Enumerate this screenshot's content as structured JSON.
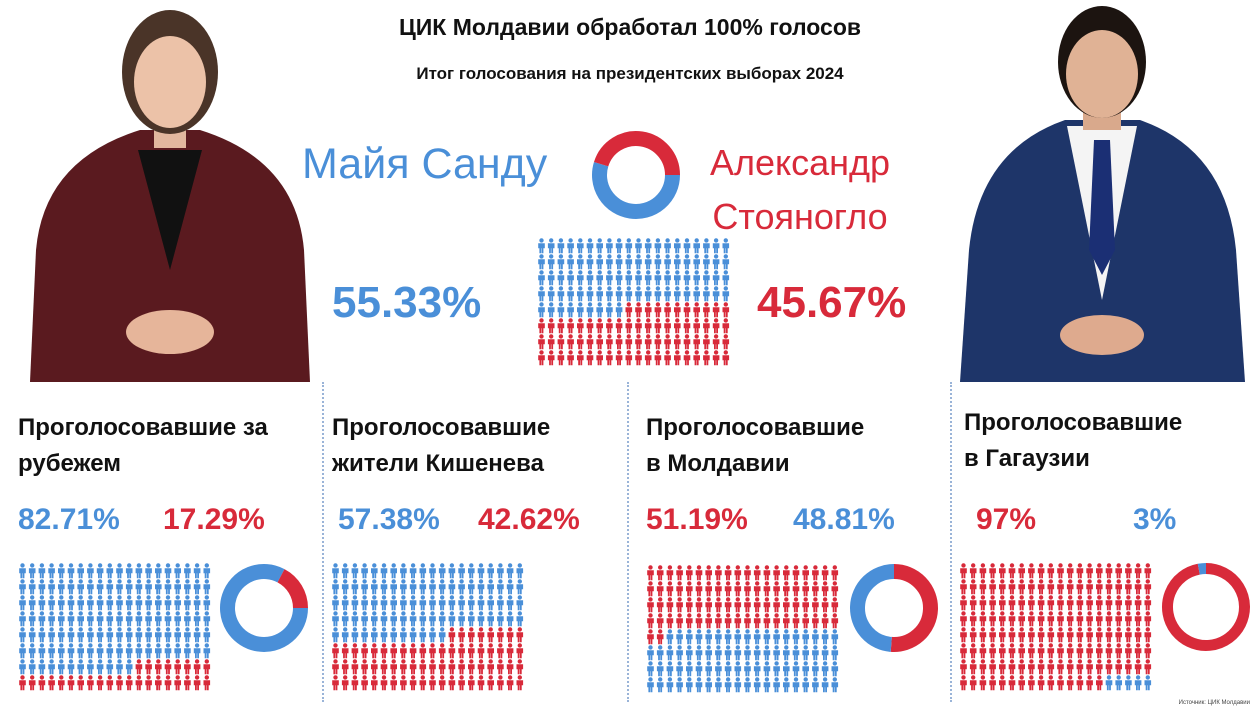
{
  "header": {
    "title": "ЦИК Молдавии обработал 100% голосов",
    "subtitle": "Итог голосования на президентских выборах 2024"
  },
  "colors": {
    "sandu": "#4a8fd8",
    "stoianoglo": "#d82a3a"
  },
  "candidates": {
    "left_name": "Майя Санду",
    "right_name_line1": "Александр",
    "right_name_line2": "Стояногло",
    "left_pct": "55.33%",
    "right_pct": "45.67%"
  },
  "sections": [
    {
      "title_line1": "Проголосовавшие за",
      "title_line2": "рубежем",
      "pct_a": "82.71%",
      "pct_b": "17.29%"
    },
    {
      "title_line1": "Проголосовавшие",
      "title_line2": "жители Кишенева",
      "pct_a": "57.38%",
      "pct_b": "42.62%"
    },
    {
      "title_line1": "Проголосовавшие",
      "title_line2": "в Молдавии",
      "pct_a": "51.19%",
      "pct_b": "48.81%"
    },
    {
      "title_line1": "Проголосовавшие",
      "title_line2": "в Гагаузии",
      "pct_a": "97%",
      "pct_b": "3%"
    }
  ],
  "chart_data": [
    {
      "type": "pie",
      "name": "Итог",
      "labels": [
        "Майя Санду",
        "Александр Стояногло"
      ],
      "values": [
        55.33,
        45.67
      ],
      "colors": [
        "#4a8fd8",
        "#d82a3a"
      ]
    },
    {
      "type": "pie",
      "name": "Проголосовавшие за рубежем",
      "labels": [
        "Майя Санду",
        "Александр Стояногло"
      ],
      "values": [
        82.71,
        17.29
      ],
      "colors": [
        "#4a8fd8",
        "#d82a3a"
      ]
    },
    {
      "type": "pie",
      "name": "Проголосовавшие жители Кишенева",
      "labels": [
        "Майя Санду",
        "Александр Стояногло"
      ],
      "values": [
        57.38,
        42.62
      ],
      "colors": [
        "#4a8fd8",
        "#d82a3a"
      ]
    },
    {
      "type": "pie",
      "name": "Проголосовавшие в Молдавии",
      "labels": [
        "Александр Стояногло",
        "Майя Санду"
      ],
      "values": [
        51.19,
        48.81
      ],
      "colors": [
        "#d82a3a",
        "#4a8fd8"
      ]
    },
    {
      "type": "pie",
      "name": "Проголосовавшие в Гагаузии",
      "labels": [
        "Александр Стояногло",
        "Майя Санду"
      ],
      "values": [
        97,
        3
      ],
      "colors": [
        "#d82a3a",
        "#4a8fd8"
      ]
    }
  ],
  "footer": "Источник: ЦИК Молдавии"
}
